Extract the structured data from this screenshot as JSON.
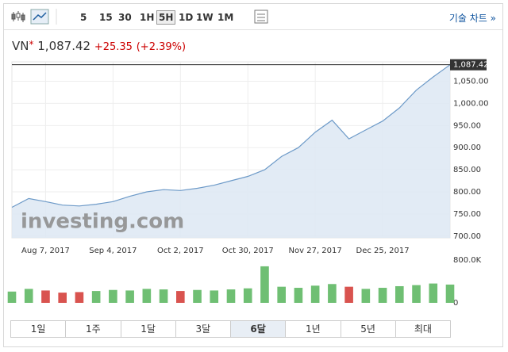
{
  "toolbar": {
    "intervals": [
      "5",
      "15",
      "30",
      "1H",
      "5H",
      "1D",
      "1W",
      "1M"
    ],
    "active": 4,
    "tech_chart": "기술 차트 »"
  },
  "quote": {
    "symbol": "VN",
    "marker": "*",
    "price": "1,087.42",
    "change": "+25.35",
    "change_pct": "(+2.39%)"
  },
  "watermark": "investing.com",
  "ranges": {
    "labels": [
      "1일",
      "1주",
      "1달",
      "3달",
      "6달",
      "1년",
      "5년",
      "최대"
    ],
    "active": 4
  },
  "chart_data": [
    {
      "type": "area",
      "categories": [
        null,
        null,
        "Aug 7, 2017",
        null,
        null,
        null,
        "Sep 4, 2017",
        null,
        null,
        null,
        "Oct 2, 2017",
        null,
        null,
        null,
        "Oct 30, 2017",
        null,
        null,
        null,
        "Nov 27, 2017",
        null,
        null,
        null,
        "Dec 25, 2017",
        null,
        null,
        null,
        null
      ],
      "series": [
        {
          "name": "VN",
          "color": "#6d9ac8",
          "values": [
            765,
            785,
            778,
            770,
            768,
            772,
            778,
            790,
            800,
            805,
            803,
            808,
            815,
            825,
            835,
            850,
            880,
            900,
            935,
            962,
            920,
            940,
            960,
            990,
            1030,
            1060,
            1087.42
          ]
        }
      ],
      "ylim": [
        696,
        1094
      ],
      "yticks": [
        {
          "value": 700,
          "label": "700.00"
        },
        {
          "value": 750,
          "label": "750.00"
        },
        {
          "value": 800,
          "label": "800.00"
        },
        {
          "value": 850,
          "label": "850.00"
        },
        {
          "value": 900,
          "label": "900.00"
        },
        {
          "value": 950,
          "label": "950.00"
        },
        {
          "value": 1000,
          "label": "1,000.00"
        },
        {
          "value": 1050,
          "label": "1,050.00"
        }
      ],
      "grid": true
    },
    {
      "type": "bar",
      "values": [
        210000,
        260000,
        230000,
        190000,
        200000,
        220000,
        240000,
        230000,
        260000,
        250000,
        220000,
        240000,
        230000,
        250000,
        270000,
        680000,
        300000,
        280000,
        320000,
        350000,
        300000,
        260000,
        280000,
        310000,
        330000,
        360000,
        340000
      ],
      "up_color": "#6fbf73",
      "down_color": "#d9534f",
      "ylim": [
        0,
        900000
      ],
      "yticks": [
        {
          "value": 800000,
          "label": "800.0K"
        },
        0
      ]
    }
  ]
}
